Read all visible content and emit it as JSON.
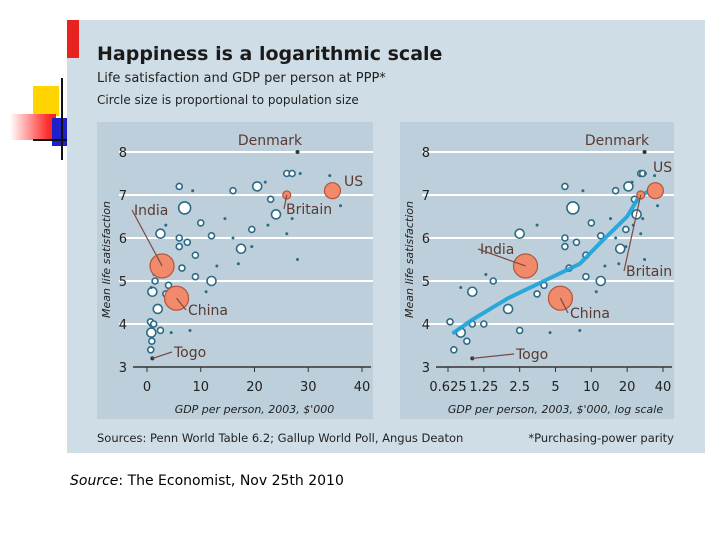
{
  "title": "Happiness is a logarithmic scale",
  "subtitle": "Life satisfaction and GDP per person at PPP*",
  "note": "Circle size is proportional to population size",
  "sources": "Sources: Penn World Table 6.2; Gallup World Poll, Angus Deaton",
  "footnote": "*Purchasing-power parity",
  "caption": {
    "label": "Source",
    "text": ": The Economist, Nov 25th 2010"
  },
  "colors": {
    "background": "#cfdde6",
    "panel": "#bccfdb",
    "points": "#2d6a86",
    "highlight": "#f08a6a",
    "trend": "#1aa3d9",
    "accent_red": "#e8231f"
  },
  "chart_data": [
    {
      "type": "scatter",
      "ylabel": "Mean life satisfaction",
      "xlabel": "GDP per person, 2003, $'000",
      "xscale": "linear",
      "xlim": [
        0,
        40
      ],
      "ylim": [
        3,
        8
      ],
      "xticks": [
        "0",
        "10",
        "20",
        "30",
        "40"
      ],
      "yticks": [
        "3",
        "4",
        "5",
        "6",
        "7",
        "8"
      ],
      "grid": "horizontal",
      "labels": [
        "Denmark",
        "US",
        "India",
        "Britain",
        "China",
        "Togo"
      ]
    },
    {
      "type": "scatter",
      "ylabel": "Mean life satisfaction",
      "xlabel": "GDP per person, 2003, $'000, log scale",
      "xscale": "log",
      "xlim": [
        0.625,
        40
      ],
      "ylim": [
        3,
        8
      ],
      "xticks": [
        "0.625",
        "1.25",
        "2.5",
        "5",
        "10",
        "20",
        "40"
      ],
      "yticks": [
        "3",
        "4",
        "5",
        "6",
        "7",
        "8"
      ],
      "grid": "horizontal",
      "trend": [
        [
          0.7,
          3.8
        ],
        [
          1,
          4.1
        ],
        [
          2,
          4.6
        ],
        [
          4,
          5.0
        ],
        [
          8,
          5.4
        ],
        [
          12,
          5.9
        ],
        [
          20,
          6.5
        ],
        [
          25,
          6.95
        ],
        [
          35,
          7.2
        ]
      ],
      "labels": [
        "Denmark",
        "US",
        "India",
        "Britain",
        "China",
        "Togo"
      ]
    }
  ],
  "countries": [
    {
      "name": "Denmark",
      "gdp": 28,
      "satisfaction": 8.0,
      "size": "small"
    },
    {
      "name": "US",
      "gdp": 34.5,
      "satisfaction": 7.1,
      "size": "medium"
    },
    {
      "name": "Britain",
      "gdp": 26,
      "satisfaction": 7.0,
      "size": "small"
    },
    {
      "name": "India",
      "gdp": 2.8,
      "satisfaction": 5.35,
      "size": "large"
    },
    {
      "name": "China",
      "gdp": 5.5,
      "satisfaction": 4.6,
      "size": "large"
    },
    {
      "name": "Togo",
      "gdp": 1.0,
      "satisfaction": 3.2,
      "size": "tiny"
    }
  ],
  "points": [
    [
      6,
      7.2,
      3
    ],
    [
      8.5,
      7.1,
      1.5
    ],
    [
      16,
      7.1,
      3
    ],
    [
      20.5,
      7.2,
      4.5
    ],
    [
      23,
      6.9,
      3
    ],
    [
      24,
      6.55,
      4.5
    ],
    [
      7,
      6.7,
      6
    ],
    [
      10,
      6.35,
      3
    ],
    [
      2.5,
      6.1,
      4.5
    ],
    [
      12,
      6.05,
      3
    ],
    [
      6,
      6.0,
      3
    ],
    [
      19.5,
      6.2,
      3
    ],
    [
      17.5,
      5.75,
      4.5
    ],
    [
      7.5,
      5.9,
      3
    ],
    [
      6,
      5.8,
      3
    ],
    [
      9,
      5.6,
      3
    ],
    [
      12,
      5.0,
      4.5
    ],
    [
      9,
      5.1,
      3
    ],
    [
      6.5,
      5.3,
      3
    ],
    [
      3,
      5.3,
      3
    ],
    [
      4,
      4.9,
      3
    ],
    [
      3.5,
      4.7,
      3
    ],
    [
      1,
      4.75,
      4.5
    ],
    [
      2,
      4.35,
      4.5
    ],
    [
      1,
      4.0,
      3
    ],
    [
      0.8,
      3.8,
      4.5
    ],
    [
      0.9,
      3.6,
      3
    ],
    [
      0.7,
      3.4,
      3
    ],
    [
      2.5,
      3.85,
      3
    ],
    [
      8,
      3.85,
      1.5
    ],
    [
      4.5,
      3.8,
      1.5
    ],
    [
      14.5,
      6.45,
      1.5
    ],
    [
      16,
      6.0,
      1.5
    ],
    [
      22,
      7.3,
      1.5
    ],
    [
      26,
      7.5,
      3
    ],
    [
      27,
      7.5,
      3
    ],
    [
      28.5,
      7.5,
      1.5
    ],
    [
      22.5,
      6.3,
      1.5
    ],
    [
      26,
      6.1,
      1.5
    ],
    [
      28,
      5.5,
      1.5
    ],
    [
      34,
      7.45,
      1.5
    ],
    [
      36,
      6.75,
      1.5
    ],
    [
      27,
      6.45,
      1.5
    ],
    [
      17,
      5.4,
      1.5
    ],
    [
      19.5,
      5.8,
      1.5
    ],
    [
      3.5,
      6.3,
      1.5
    ],
    [
      11,
      4.75,
      1.5
    ],
    [
      13,
      5.35,
      1.5
    ],
    [
      1.5,
      5.0,
      3
    ],
    [
      5.5,
      4.8,
      3
    ],
    [
      0.65,
      4.05,
      3
    ],
    [
      1.25,
      4.0,
      3
    ],
    [
      1.3,
      5.15,
      1.5
    ],
    [
      0.8,
      4.85,
      1.5
    ]
  ]
}
